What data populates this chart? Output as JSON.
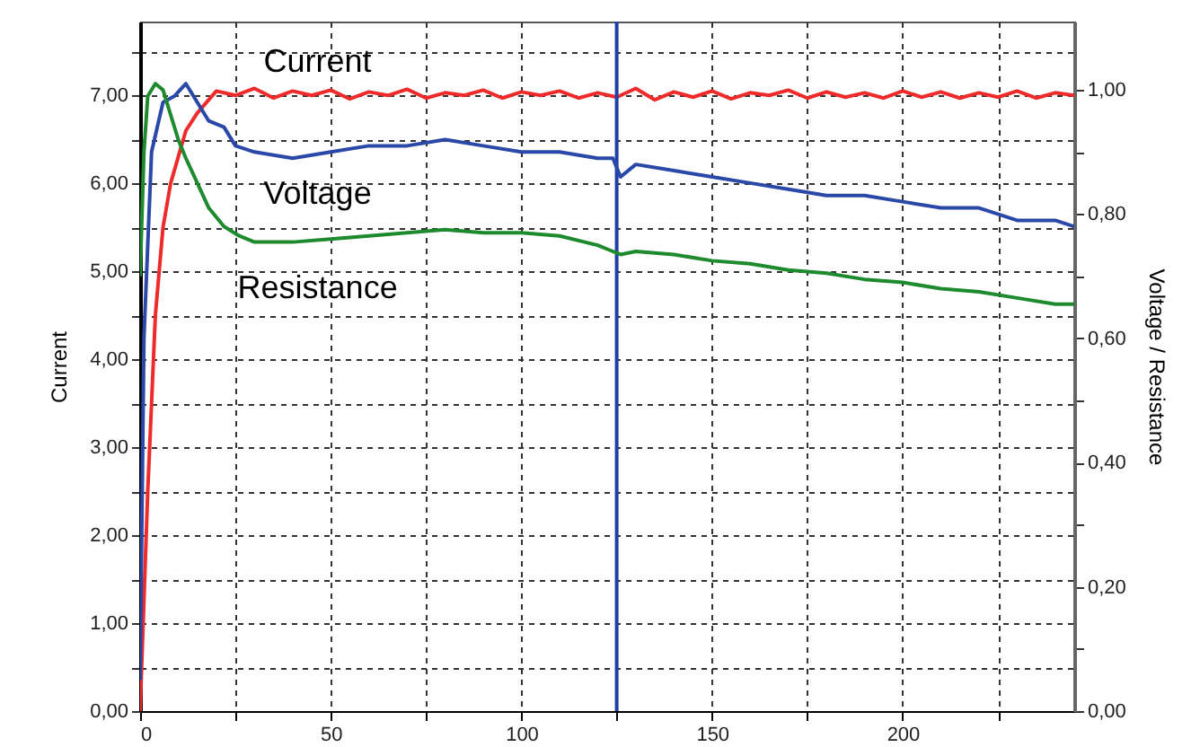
{
  "chart_data": {
    "type": "line",
    "xlabel": null,
    "ylabel": "Current",
    "y2label": "Voltage / Resistance",
    "xlim": [
      0,
      245
    ],
    "xticks": [
      0,
      {
        "value": 25,
        "label": null
      },
      50,
      {
        "value": 75,
        "label": null
      },
      100,
      {
        "value": 125,
        "label": null
      },
      150,
      {
        "value": 175,
        "label": null
      },
      200,
      {
        "value": 225,
        "label": null
      }
    ],
    "ylim": [
      0,
      7.84
    ],
    "yticks": [
      {
        "value": 0,
        "label": "0,00"
      },
      {
        "value": 0.5,
        "label": null
      },
      {
        "value": 1,
        "label": "1,00"
      },
      {
        "value": 1.5,
        "label": null
      },
      {
        "value": 2,
        "label": "2,00"
      },
      {
        "value": 2.5,
        "label": null
      },
      {
        "value": 3,
        "label": "3,00"
      },
      {
        "value": 3.5,
        "label": null
      },
      {
        "value": 4,
        "label": "4,00"
      },
      {
        "value": 4.5,
        "label": null
      },
      {
        "value": 5,
        "label": "5,00"
      },
      {
        "value": 5.5,
        "label": null
      },
      {
        "value": 6,
        "label": "6,00"
      },
      {
        "value": 6.5,
        "label": null
      },
      {
        "value": 7,
        "label": "7,00"
      },
      {
        "value": 7.5,
        "label": null
      }
    ],
    "y2lim": [
      0,
      1.11
    ],
    "y2ticks": [
      {
        "value": 0,
        "label": "0,00"
      },
      {
        "value": 0.1,
        "label": null
      },
      {
        "value": 0.2,
        "label": "0,20"
      },
      {
        "value": 0.3,
        "label": null
      },
      {
        "value": 0.4,
        "label": "0,40"
      },
      {
        "value": 0.5,
        "label": null
      },
      {
        "value": 0.6,
        "label": "0,60"
      },
      {
        "value": 0.7,
        "label": null
      },
      {
        "value": 0.8,
        "label": "0,80"
      },
      {
        "value": 0.9,
        "label": null
      },
      {
        "value": 1,
        "label": "1,00"
      }
    ],
    "grid": true,
    "line_style": "solid",
    "marker": "none",
    "ref_lines": [
      {
        "axis": "x",
        "value": 125,
        "label": null,
        "color": "#1f3fa8"
      }
    ],
    "series": [
      {
        "name": "Current",
        "color": "#ee2a2a",
        "axis": "y",
        "x": [
          0,
          2,
          4,
          6,
          8,
          10,
          12,
          15,
          18,
          20,
          25,
          30,
          35,
          40,
          45,
          50,
          55,
          60,
          65,
          70,
          75,
          80,
          85,
          90,
          95,
          100,
          105,
          110,
          115,
          120,
          125,
          130,
          135,
          140,
          145,
          150,
          155,
          160,
          165,
          170,
          175,
          180,
          185,
          190,
          195,
          200,
          205,
          210,
          215,
          220,
          225,
          230,
          235,
          240,
          245
        ],
        "values": [
          0,
          2.5,
          4.5,
          5.5,
          6.0,
          6.3,
          6.6,
          6.8,
          6.95,
          7.05,
          7.0,
          7.08,
          6.97,
          7.05,
          7.0,
          7.06,
          6.96,
          7.04,
          7.0,
          7.07,
          6.97,
          7.03,
          7.0,
          7.06,
          6.97,
          7.04,
          7.0,
          7.05,
          6.97,
          7.03,
          6.98,
          7.08,
          6.95,
          7.04,
          6.98,
          7.05,
          6.96,
          7.03,
          7.0,
          7.06,
          6.97,
          7.04,
          6.98,
          7.03,
          6.97,
          7.05,
          6.98,
          7.04,
          6.97,
          7.03,
          6.98,
          7.05,
          6.97,
          7.03,
          7.0
        ]
      },
      {
        "name": "Voltage",
        "color": "#2a48a8",
        "axis": "y2",
        "x": [
          0,
          1,
          3,
          6,
          9,
          12,
          15,
          18,
          22,
          25,
          30,
          40,
          50,
          60,
          70,
          80,
          90,
          100,
          110,
          120,
          124,
          126,
          130,
          140,
          150,
          160,
          170,
          180,
          190,
          200,
          210,
          220,
          230,
          240,
          245
        ],
        "values": [
          0.05,
          0.6,
          0.9,
          0.98,
          0.99,
          1.01,
          0.98,
          0.95,
          0.94,
          0.91,
          0.9,
          0.89,
          0.9,
          0.91,
          0.91,
          0.92,
          0.91,
          0.9,
          0.9,
          0.89,
          0.89,
          0.86,
          0.88,
          0.87,
          0.86,
          0.85,
          0.84,
          0.83,
          0.83,
          0.82,
          0.81,
          0.81,
          0.79,
          0.79,
          0.78
        ]
      },
      {
        "name": "Resistance",
        "color": "#1e8a2e",
        "axis": "y2",
        "x": [
          0,
          1,
          2,
          4,
          6,
          8,
          10,
          12,
          15,
          18,
          22,
          26,
          30,
          40,
          50,
          60,
          70,
          80,
          90,
          100,
          110,
          120,
          124,
          126,
          130,
          140,
          150,
          160,
          170,
          180,
          190,
          200,
          210,
          220,
          230,
          240,
          245
        ],
        "values": [
          0.7,
          0.9,
          0.99,
          1.01,
          1.0,
          0.96,
          0.92,
          0.89,
          0.85,
          0.81,
          0.78,
          0.765,
          0.755,
          0.755,
          0.76,
          0.765,
          0.77,
          0.775,
          0.77,
          0.77,
          0.765,
          0.75,
          0.74,
          0.735,
          0.74,
          0.735,
          0.725,
          0.72,
          0.71,
          0.705,
          0.695,
          0.69,
          0.68,
          0.675,
          0.665,
          0.655,
          0.655
        ]
      }
    ]
  }
}
